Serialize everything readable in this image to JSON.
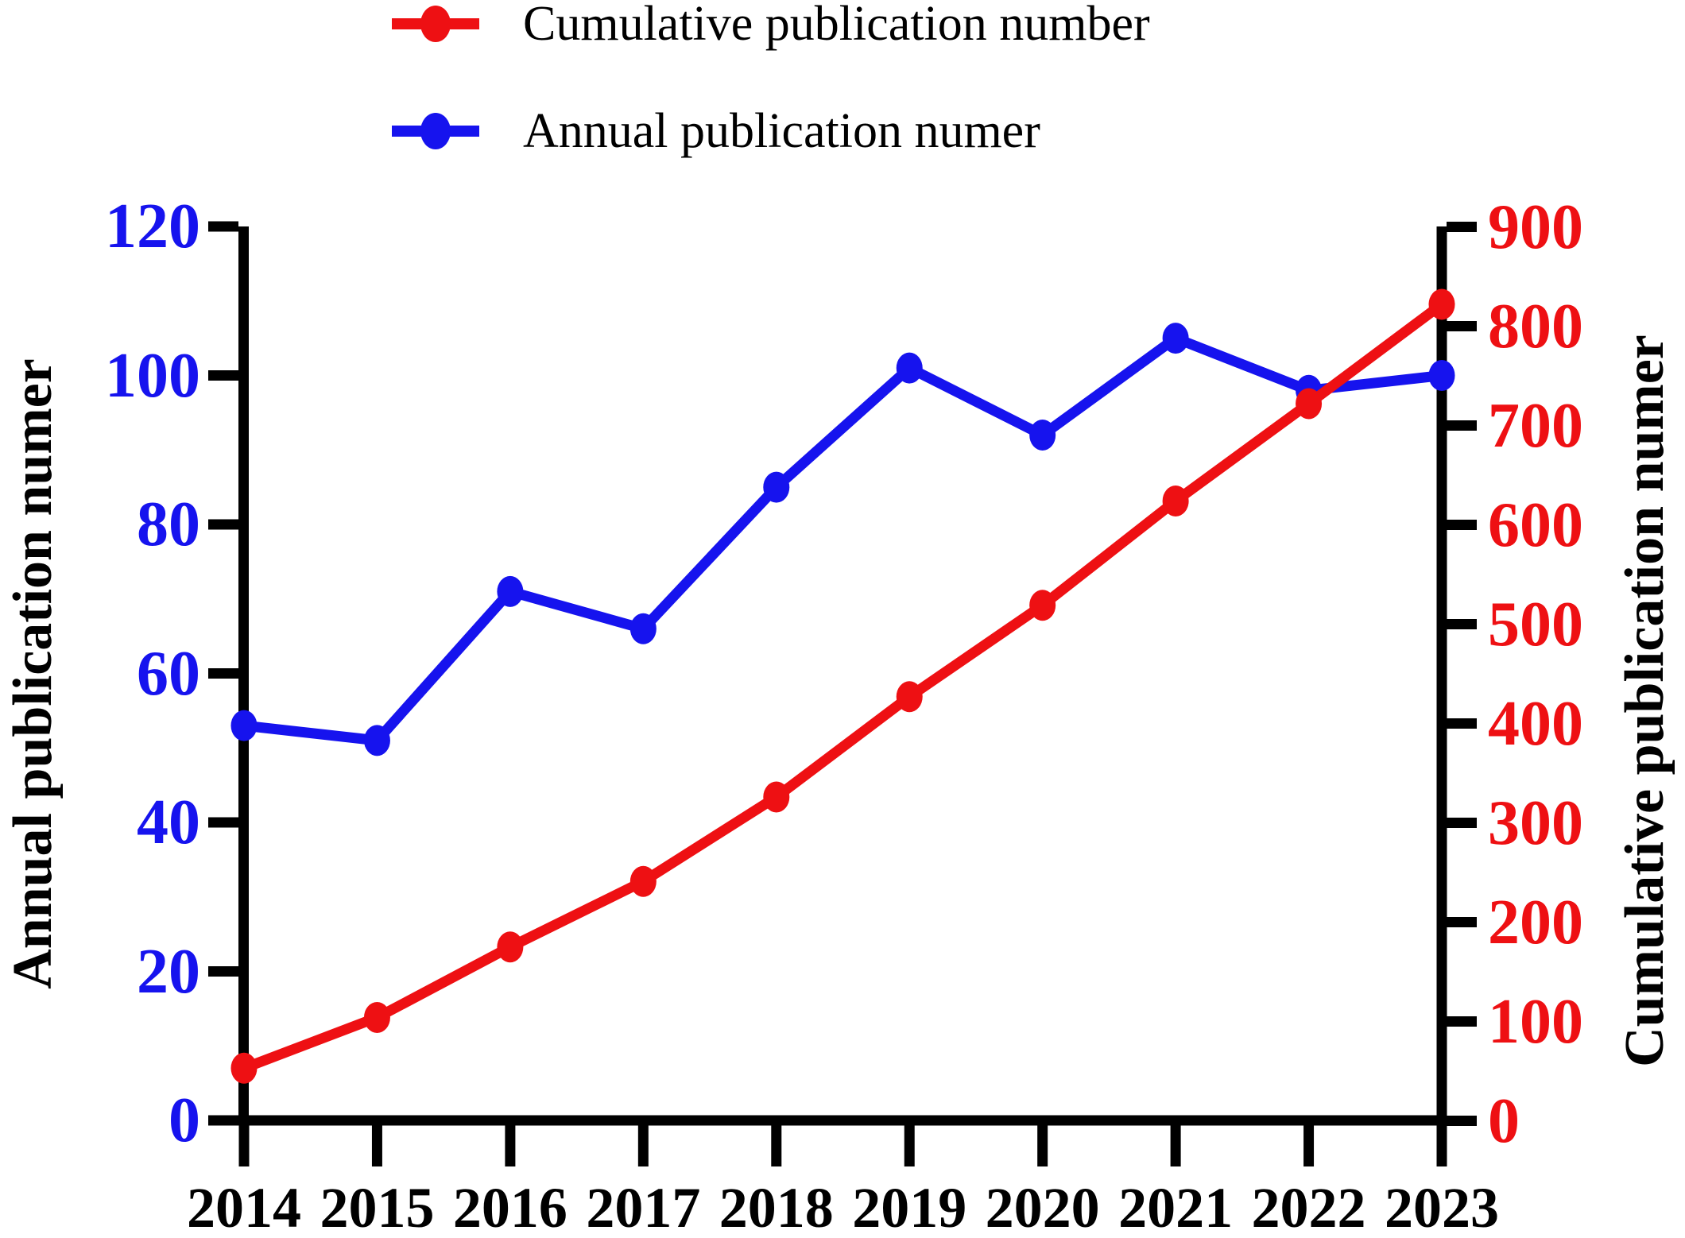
{
  "figure": {
    "legend": [
      {
        "label": "Cumulative publication number",
        "series": "cumulative"
      },
      {
        "label": "Annual publication numer",
        "series": "annual"
      }
    ],
    "left_axis_title": "Annual publication numer",
    "right_axis_title": "Cumulative publication numer"
  },
  "chart_data": {
    "type": "line",
    "title": "",
    "x": [
      2014,
      2015,
      2016,
      2017,
      2018,
      2019,
      2020,
      2021,
      2022,
      2023
    ],
    "series": [
      {
        "name": "Annual publication numer",
        "axis": "left",
        "color": "#1613ee",
        "marker": "circle",
        "values": [
          53,
          51,
          71,
          66,
          85,
          101,
          92,
          105,
          98,
          100
        ]
      },
      {
        "name": "Cumulative publication number",
        "axis": "right",
        "color": "#ee1013",
        "marker": "circle",
        "values": [
          53,
          104,
          175,
          241,
          326,
          427,
          519,
          624,
          722,
          822
        ]
      }
    ],
    "left_axis": {
      "title": "Annual publication numer",
      "color": "#1613ee",
      "range": [
        0,
        120
      ],
      "ticks": [
        0,
        20,
        40,
        60,
        80,
        100,
        120
      ]
    },
    "right_axis": {
      "title": "Cumulative publication numer",
      "color": "#ee1013",
      "range": [
        0,
        900
      ],
      "ticks": [
        0,
        100,
        200,
        300,
        400,
        500,
        600,
        700,
        800,
        900
      ]
    },
    "x_axis": {
      "color": "#000000",
      "ticks": [
        "2014",
        "2015",
        "2016",
        "2017",
        "2018",
        "2019",
        "2020",
        "2021",
        "2022",
        "2023"
      ]
    },
    "legend_position": "top",
    "grid": false
  }
}
